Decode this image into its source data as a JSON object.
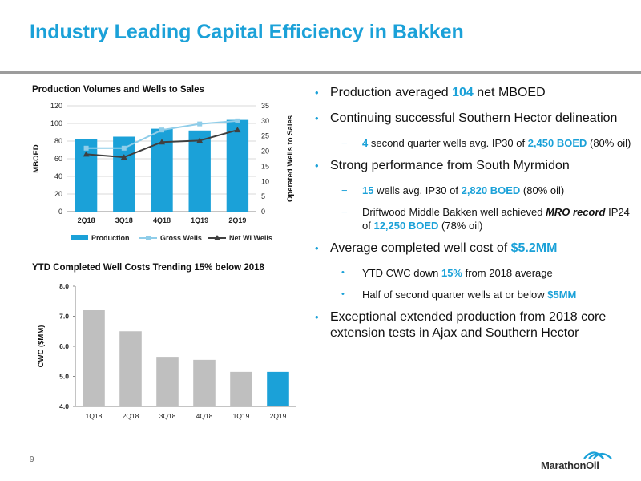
{
  "slide": {
    "title": "Industry Leading Capital Efficiency in Bakken",
    "page_number": "9",
    "logo_text": "MarathonOil"
  },
  "colors": {
    "accent": "#1ba1d8",
    "bar_gray": "#bfbfbf",
    "gross_line": "#8fcde9",
    "net_line": "#404040"
  },
  "chart_data": [
    {
      "type": "bar",
      "title": "Production Volumes and Wells to Sales",
      "categories": [
        "2Q18",
        "3Q18",
        "4Q18",
        "1Q19",
        "2Q19"
      ],
      "ylabel": "MBOED",
      "y2label": "Operated Wells to Sales",
      "ylim": [
        0,
        120
      ],
      "yticks": [
        "0",
        "20",
        "40",
        "60",
        "80",
        "100",
        "120"
      ],
      "y2lim": [
        0,
        35
      ],
      "y2ticks": [
        "0",
        "5",
        "10",
        "15",
        "20",
        "25",
        "30",
        "35"
      ],
      "series": [
        {
          "name": "Production",
          "type": "bar",
          "axis": "left",
          "values": [
            82,
            85,
            94,
            92,
            104
          ]
        },
        {
          "name": "Gross Wells",
          "type": "line",
          "axis": "right",
          "values": [
            21,
            21,
            27,
            29,
            30
          ]
        },
        {
          "name": "Net WI Wells",
          "type": "line",
          "axis": "right",
          "values": [
            19,
            18,
            23,
            23.5,
            27
          ]
        }
      ],
      "legend": "bottom"
    },
    {
      "type": "bar",
      "title": "YTD Completed Well Costs Trending 15% below 2018",
      "categories": [
        "1Q18",
        "2Q18",
        "3Q18",
        "4Q18",
        "1Q19",
        "2Q19"
      ],
      "values": [
        7.2,
        6.5,
        5.65,
        5.55,
        5.15,
        5.15
      ],
      "ylabel": "CWC ($MM)",
      "ylim": [
        4.0,
        8.0
      ],
      "yticks": [
        "4.0",
        "5.0",
        "6.0",
        "7.0",
        "8.0"
      ],
      "highlight_index": 5
    }
  ],
  "bullets": [
    {
      "parts": [
        "Production averaged ",
        "104",
        " net MBOED"
      ]
    },
    {
      "parts": [
        "Continuing successful Southern Hector delineation"
      ]
    },
    {
      "parts": [
        "4",
        "  second quarter wells avg. IP30 of ",
        "2,450 BOED",
        " (80% oil)"
      ]
    },
    {
      "parts": [
        "Strong performance from South Myrmidon"
      ]
    },
    {
      "parts": [
        "15",
        " wells avg. IP30 of ",
        "2,820 BOED",
        " (80% oil)"
      ]
    },
    {
      "parts": [
        "Driftwood Middle Bakken well achieved ",
        "MRO record",
        " IP24 of ",
        "12,250 BOED",
        " (78% oil)"
      ]
    },
    {
      "parts": [
        "Average completed well cost of ",
        "$5.2MM"
      ]
    },
    {
      "parts": [
        "YTD CWC down ",
        "15%",
        " from 2018 average"
      ]
    },
    {
      "parts": [
        "Half of second quarter wells at or below ",
        "$5MM"
      ]
    },
    {
      "parts": [
        "Exceptional extended production from 2018 core extension tests in Ajax and Southern Hector"
      ]
    }
  ]
}
